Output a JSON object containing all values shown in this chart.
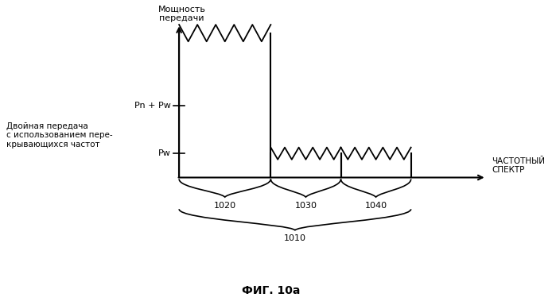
{
  "title": "ФИГ. 10a",
  "ylabel": "Мощность\nпередачи",
  "xlabel": "ЧАСТОТНЫЙ\nСПЕКТР",
  "left_label": "Двойная передача\nс использованием пере-\nкрывающихся частот",
  "label_pn_pw": "Pn + Pw",
  "label_pw": "Pw",
  "bg_color": "#ffffff",
  "line_color": "#000000",
  "fig_color": "#ffffff"
}
